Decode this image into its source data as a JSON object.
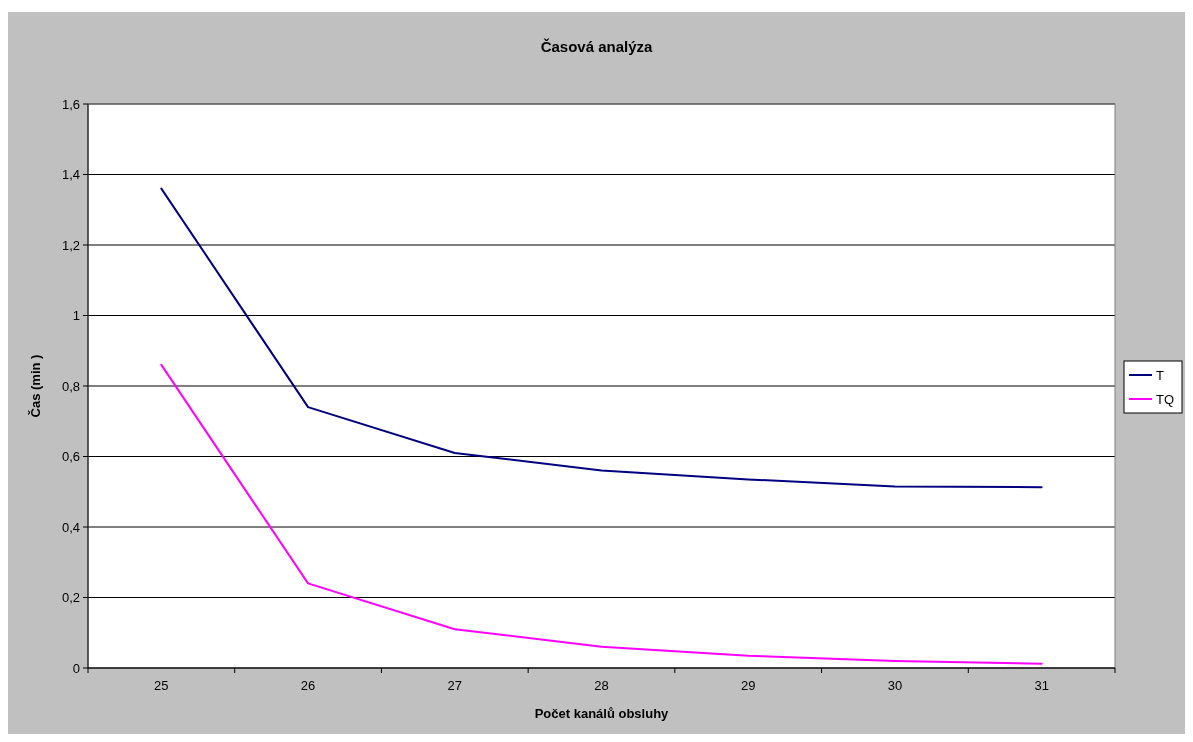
{
  "chart_data": {
    "type": "line",
    "title": "Časová analýza",
    "xlabel": "Počet kanálů obsluhy",
    "ylabel": "Čas (min )",
    "categories": [
      "25",
      "26",
      "27",
      "28",
      "29",
      "30",
      "31"
    ],
    "series": [
      {
        "name": "T",
        "color": "#000080",
        "values": [
          1.36,
          0.74,
          0.61,
          0.56,
          0.535,
          0.515,
          0.513
        ]
      },
      {
        "name": "TQ",
        "color": "#ff00ff",
        "values": [
          0.86,
          0.24,
          0.11,
          0.06,
          0.035,
          0.02,
          0.012
        ]
      }
    ],
    "ylim": [
      0,
      1.6
    ],
    "yticks": [
      0,
      {
        "value": 0.2,
        "label": "0,2"
      },
      {
        "value": 0.4,
        "label": "0,4"
      },
      {
        "value": 0.6,
        "label": "0,6"
      },
      {
        "value": 0.8,
        "label": "0,8"
      },
      1,
      {
        "value": 1.2,
        "label": "1,2"
      },
      {
        "value": 1.4,
        "label": "1,4"
      },
      {
        "value": 1.6,
        "label": "1,6"
      }
    ],
    "grid": "y",
    "legend": "right",
    "marker": "none",
    "line_style": "solid"
  }
}
